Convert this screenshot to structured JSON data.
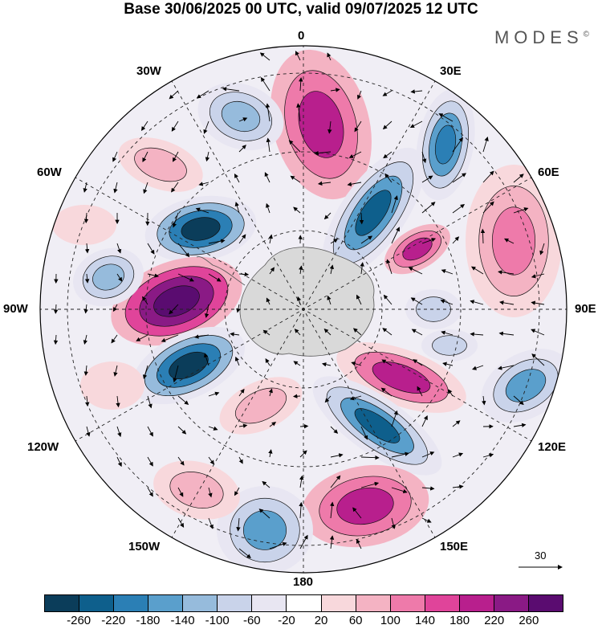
{
  "title": "Base 30/06/2025 00 UTC, valid 09/07/2025 12 UTC",
  "brand": "MODES",
  "brand_mark": "©",
  "longitude_labels": {
    "top": "0",
    "top_left": "30W",
    "top_right": "30E",
    "upper_left": "60W",
    "upper_right": "60E",
    "left": "90W",
    "right": "90E",
    "lower_left": "120W",
    "lower_right": "120E",
    "bottom_left": "150W",
    "bottom_right": "150E",
    "bottom": "180"
  },
  "reference_vector": {
    "value": "30",
    "icon": "arrow-right-icon"
  },
  "colorbar": {
    "ticks": [
      "-260",
      "-220",
      "-180",
      "-140",
      "-100",
      "-60",
      "-20",
      "20",
      "60",
      "100",
      "140",
      "180",
      "220",
      "260"
    ],
    "colors": [
      "#0b3d5a",
      "#0e5f8c",
      "#2b7fb5",
      "#5a9fcc",
      "#96bbdc",
      "#c9d3ea",
      "#e8e6f2",
      "#ffffff",
      "#f8d8dc",
      "#f4b3c3",
      "#ee7aaa",
      "#e0449a",
      "#b81f8d",
      "#8a1a85",
      "#5a0c70"
    ]
  },
  "map": {
    "projection": "south-polar-stereographic",
    "features": [
      "anomaly-shading",
      "wind-vectors",
      "coastlines",
      "lat-lon-grid"
    ]
  }
}
